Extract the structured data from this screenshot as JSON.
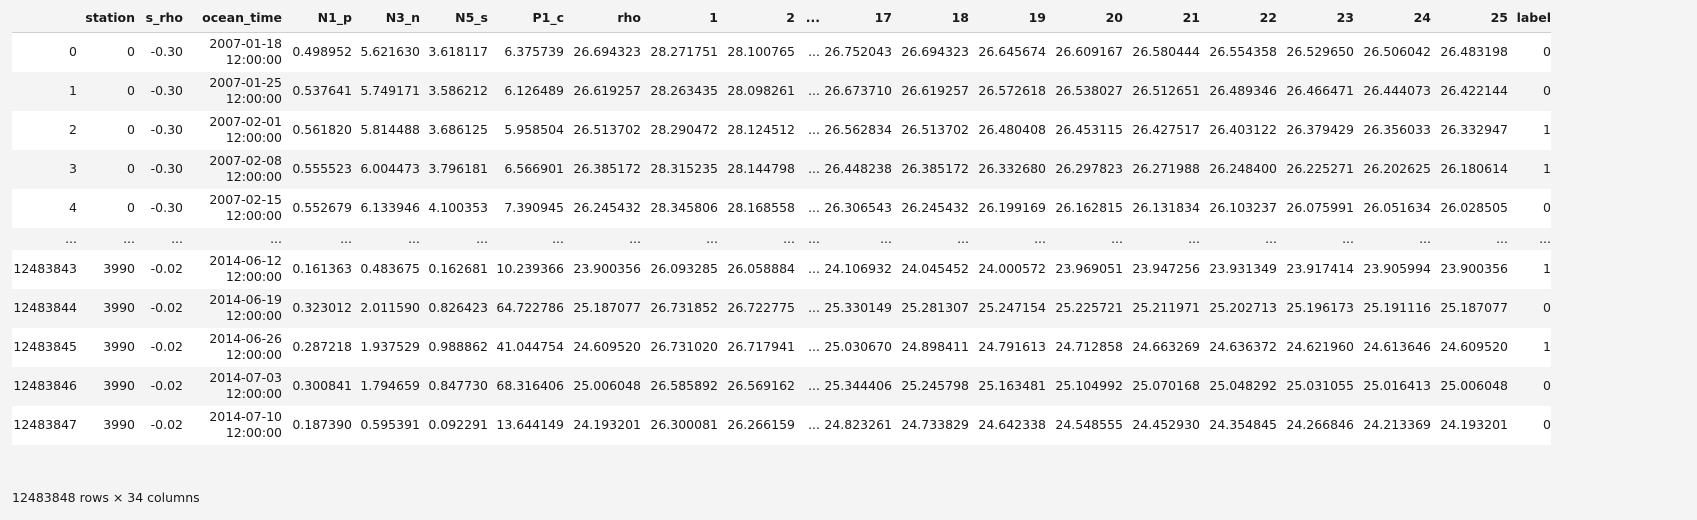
{
  "columns": [
    "",
    "station",
    "s_rho",
    "ocean_time",
    "N1_p",
    "N3_n",
    "N5_s",
    "P1_c",
    "rho",
    "1",
    "2",
    "...",
    "17",
    "18",
    "19",
    "20",
    "21",
    "22",
    "23",
    "24",
    "25",
    "label"
  ],
  "rows": [
    {
      "index": "0",
      "station": "0",
      "s_rho": "-0.30",
      "date": "2007-01-18",
      "time": "12:00:00",
      "N1_p": "0.498952",
      "N3_n": "5.621630",
      "N5_s": "3.618117",
      "P1_c": "6.375739",
      "rho": "26.694323",
      "c1": "28.271751",
      "c2": "28.100765",
      "ell": "...",
      "c17": "26.752043",
      "c18": "26.694323",
      "c19": "26.645674",
      "c20": "26.609167",
      "c21": "26.580444",
      "c22": "26.554358",
      "c23": "26.529650",
      "c24": "26.506042",
      "c25": "26.483198",
      "label": "0"
    },
    {
      "index": "1",
      "station": "0",
      "s_rho": "-0.30",
      "date": "2007-01-25",
      "time": "12:00:00",
      "N1_p": "0.537641",
      "N3_n": "5.749171",
      "N5_s": "3.586212",
      "P1_c": "6.126489",
      "rho": "26.619257",
      "c1": "28.263435",
      "c2": "28.098261",
      "ell": "...",
      "c17": "26.673710",
      "c18": "26.619257",
      "c19": "26.572618",
      "c20": "26.538027",
      "c21": "26.512651",
      "c22": "26.489346",
      "c23": "26.466471",
      "c24": "26.444073",
      "c25": "26.422144",
      "label": "0"
    },
    {
      "index": "2",
      "station": "0",
      "s_rho": "-0.30",
      "date": "2007-02-01",
      "time": "12:00:00",
      "N1_p": "0.561820",
      "N3_n": "5.814488",
      "N5_s": "3.686125",
      "P1_c": "5.958504",
      "rho": "26.513702",
      "c1": "28.290472",
      "c2": "28.124512",
      "ell": "...",
      "c17": "26.562834",
      "c18": "26.513702",
      "c19": "26.480408",
      "c20": "26.453115",
      "c21": "26.427517",
      "c22": "26.403122",
      "c23": "26.379429",
      "c24": "26.356033",
      "c25": "26.332947",
      "label": "1"
    },
    {
      "index": "3",
      "station": "0",
      "s_rho": "-0.30",
      "date": "2007-02-08",
      "time": "12:00:00",
      "N1_p": "0.555523",
      "N3_n": "6.004473",
      "N5_s": "3.796181",
      "P1_c": "6.566901",
      "rho": "26.385172",
      "c1": "28.315235",
      "c2": "28.144798",
      "ell": "...",
      "c17": "26.448238",
      "c18": "26.385172",
      "c19": "26.332680",
      "c20": "26.297823",
      "c21": "26.271988",
      "c22": "26.248400",
      "c23": "26.225271",
      "c24": "26.202625",
      "c25": "26.180614",
      "label": "1"
    },
    {
      "index": "4",
      "station": "0",
      "s_rho": "-0.30",
      "date": "2007-02-15",
      "time": "12:00:00",
      "N1_p": "0.552679",
      "N3_n": "6.133946",
      "N5_s": "4.100353",
      "P1_c": "7.390945",
      "rho": "26.245432",
      "c1": "28.345806",
      "c2": "28.168558",
      "ell": "...",
      "c17": "26.306543",
      "c18": "26.245432",
      "c19": "26.199169",
      "c20": "26.162815",
      "c21": "26.131834",
      "c22": "26.103237",
      "c23": "26.075991",
      "c24": "26.051634",
      "c25": "26.028505",
      "label": "0"
    },
    {
      "index": "...",
      "station": "...",
      "s_rho": "...",
      "date": "...",
      "time": "",
      "N1_p": "...",
      "N3_n": "...",
      "N5_s": "...",
      "P1_c": "...",
      "rho": "...",
      "c1": "...",
      "c2": "...",
      "ell": "...",
      "c17": "...",
      "c18": "...",
      "c19": "...",
      "c20": "...",
      "c21": "...",
      "c22": "...",
      "c23": "...",
      "c24": "...",
      "c25": "...",
      "label": "..."
    },
    {
      "index": "12483843",
      "station": "3990",
      "s_rho": "-0.02",
      "date": "2014-06-12",
      "time": "12:00:00",
      "N1_p": "0.161363",
      "N3_n": "0.483675",
      "N5_s": "0.162681",
      "P1_c": "10.239366",
      "rho": "23.900356",
      "c1": "26.093285",
      "c2": "26.058884",
      "ell": "...",
      "c17": "24.106932",
      "c18": "24.045452",
      "c19": "24.000572",
      "c20": "23.969051",
      "c21": "23.947256",
      "c22": "23.931349",
      "c23": "23.917414",
      "c24": "23.905994",
      "c25": "23.900356",
      "label": "1"
    },
    {
      "index": "12483844",
      "station": "3990",
      "s_rho": "-0.02",
      "date": "2014-06-19",
      "time": "12:00:00",
      "N1_p": "0.323012",
      "N3_n": "2.011590",
      "N5_s": "0.826423",
      "P1_c": "64.722786",
      "rho": "25.187077",
      "c1": "26.731852",
      "c2": "26.722775",
      "ell": "...",
      "c17": "25.330149",
      "c18": "25.281307",
      "c19": "25.247154",
      "c20": "25.225721",
      "c21": "25.211971",
      "c22": "25.202713",
      "c23": "25.196173",
      "c24": "25.191116",
      "c25": "25.187077",
      "label": "0"
    },
    {
      "index": "12483845",
      "station": "3990",
      "s_rho": "-0.02",
      "date": "2014-06-26",
      "time": "12:00:00",
      "N1_p": "0.287218",
      "N3_n": "1.937529",
      "N5_s": "0.988862",
      "P1_c": "41.044754",
      "rho": "24.609520",
      "c1": "26.731020",
      "c2": "26.717941",
      "ell": "...",
      "c17": "25.030670",
      "c18": "24.898411",
      "c19": "24.791613",
      "c20": "24.712858",
      "c21": "24.663269",
      "c22": "24.636372",
      "c23": "24.621960",
      "c24": "24.613646",
      "c25": "24.609520",
      "label": "1"
    },
    {
      "index": "12483846",
      "station": "3990",
      "s_rho": "-0.02",
      "date": "2014-07-03",
      "time": "12:00:00",
      "N1_p": "0.300841",
      "N3_n": "1.794659",
      "N5_s": "0.847730",
      "P1_c": "68.316406",
      "rho": "25.006048",
      "c1": "26.585892",
      "c2": "26.569162",
      "ell": "...",
      "c17": "25.344406",
      "c18": "25.245798",
      "c19": "25.163481",
      "c20": "25.104992",
      "c21": "25.070168",
      "c22": "25.048292",
      "c23": "25.031055",
      "c24": "25.016413",
      "c25": "25.006048",
      "label": "0"
    },
    {
      "index": "12483847",
      "station": "3990",
      "s_rho": "-0.02",
      "date": "2014-07-10",
      "time": "12:00:00",
      "N1_p": "0.187390",
      "N3_n": "0.595391",
      "N5_s": "0.092291",
      "P1_c": "13.644149",
      "rho": "24.193201",
      "c1": "26.300081",
      "c2": "26.266159",
      "ell": "...",
      "c17": "24.823261",
      "c18": "24.733829",
      "c19": "24.642338",
      "c20": "24.548555",
      "c21": "24.452930",
      "c22": "24.354845",
      "c23": "24.266846",
      "c24": "24.213369",
      "c25": "24.193201",
      "label": "0"
    }
  ],
  "footer": "12483848 rows × 34 columns"
}
